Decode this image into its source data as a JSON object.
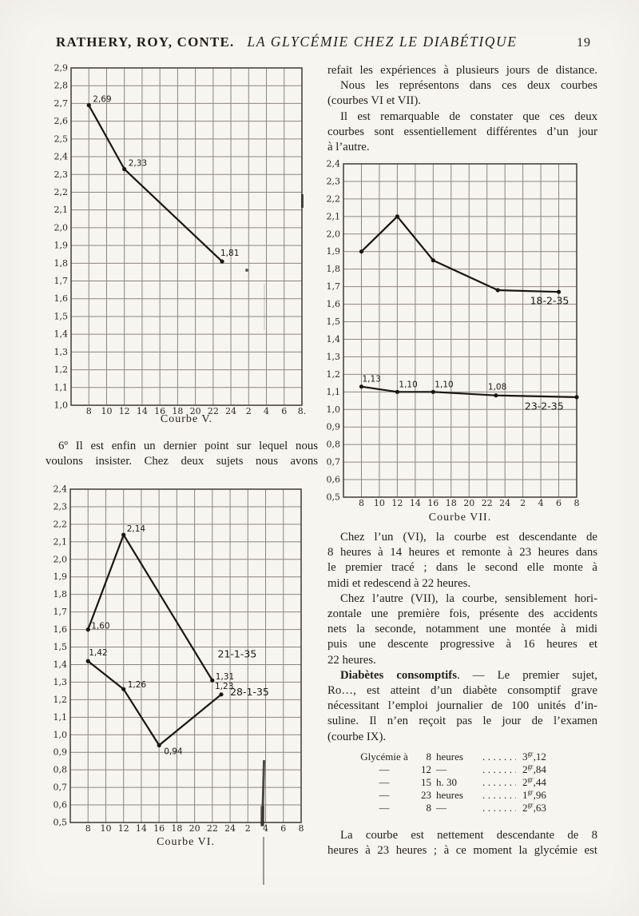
{
  "page": {
    "background": "#f7f5f0",
    "ink": "#211e19",
    "grid_line": "#8a867e",
    "curve_color": "#191611"
  },
  "header": {
    "authors": "RATHERY, ROY, CONTE.",
    "title": "LA GLYCÉMIE CHEZ LE DIABÉTIQUE",
    "page_number": "19"
  },
  "left_column": {
    "paragraphs": [
      {
        "indent": true,
        "lines": [
          {
            "t": "6º Il est enfin un dernier point sur lequel nous",
            "fill": true
          },
          {
            "t": "voulons insister. Chez deux sujets nous avons",
            "fill": true
          }
        ]
      }
    ]
  },
  "right_column": {
    "intro": [
      {
        "indent": false,
        "lines": [
          {
            "t": "refait les expériences à plusieurs jours de distance.",
            "fill": true
          }
        ]
      },
      {
        "indent": true,
        "lines": [
          {
            "t": "Nous les représentons dans ces deux courbes",
            "fill": true
          },
          {
            "t": "(courbes VI et VII).",
            "fill": false
          }
        ]
      },
      {
        "indent": true,
        "lines": [
          {
            "t": "Il est remarquable de constater que ces deux",
            "fill": true
          },
          {
            "t": "courbes sont essentiellement différentes d’un jour",
            "fill": true
          },
          {
            "t": "à l’autre.",
            "fill": false
          }
        ]
      }
    ],
    "discussion": [
      {
        "indent": true,
        "lines": [
          {
            "t": "Chez l’un (VI), la courbe est descendante de",
            "fill": true
          },
          {
            "t": "8 heures à 14 heures et remonte à 23 heures dans",
            "fill": true
          },
          {
            "t": "le premier tracé ; dans le second elle monte à",
            "fill": true
          },
          {
            "t": "midi et redescend à 22 heures.",
            "fill": false
          }
        ]
      },
      {
        "indent": true,
        "lines": [
          {
            "t": "Chez l’autre (VII), la courbe, sensiblement hori-",
            "fill": true
          },
          {
            "t": "zontale une première fois, présente des accidents",
            "fill": true
          },
          {
            "t": "nets la seconde, notamment une montée à midi",
            "fill": true
          },
          {
            "t": "puis une descente progressive à 16 heures et",
            "fill": true
          },
          {
            "t": "22 heures.",
            "fill": false
          }
        ]
      },
      {
        "indent": true,
        "lines": [
          {
            "b": "Diabètes consomptifs",
            "t": ". — Le premier sujet,",
            "fill": true
          },
          {
            "t": "Ro…, est atteint d’un diabète consomptif grave",
            "fill": true
          },
          {
            "t": "nécessitant l’emploi journalier de 100 unités d’in-",
            "fill": true
          },
          {
            "t": "suline. Il n’en reçoit pas le jour de l’examen",
            "fill": true
          },
          {
            "t": "(courbe IX).",
            "fill": false
          }
        ]
      }
    ],
    "closing": [
      {
        "indent": true,
        "lines": [
          {
            "t": "La courbe est nettement descendante de 8",
            "fill": true
          },
          {
            "t": "heures à 23 heures ; à ce moment la glycémie est",
            "fill": true
          }
        ]
      }
    ]
  },
  "glycemie_table": {
    "rows": [
      {
        "c1": "Glycémie à",
        "num": "8",
        "rest": "heures",
        "dots": "............",
        "v_int": "3",
        "v_unit": "gr",
        "v_dec": ",12"
      },
      {
        "c1": "—",
        "num": "12",
        "rest": "—",
        "dots": "............",
        "v_int": "2",
        "v_unit": "gr",
        "v_dec": ",84"
      },
      {
        "c1": "—",
        "num": "15",
        "rest": "h. 30",
        "dots": "............",
        "v_int": "2",
        "v_unit": "gr",
        "v_dec": ",44"
      },
      {
        "c1": "—",
        "num": "23",
        "rest": "heures",
        "dots": "............",
        "v_int": "1",
        "v_unit": "gr",
        "v_dec": ",96"
      },
      {
        "c1": "—",
        "num": "8",
        "rest": "—",
        "dots": "............",
        "v_int": "2",
        "v_unit": "gr",
        "v_dec": ",63"
      }
    ]
  },
  "chart_data": [
    {
      "id": "courbe-v",
      "type": "line",
      "title": "Courbe V.",
      "xlabel": "",
      "ylabel": "",
      "x_tick_labels": [
        "8",
        "10",
        "12",
        "14",
        "16",
        "18",
        "20",
        "22",
        "24",
        "2",
        "4",
        "6",
        "8."
      ],
      "ylim": [
        1.0,
        2.9
      ],
      "ystep": 0.1,
      "grid": true,
      "series": [
        {
          "name": "",
          "points": [
            {
              "xi": 0,
              "x_hour": "8",
              "y": 2.69,
              "label": "2,69",
              "ldx": 5,
              "ldy": -4
            },
            {
              "xi": 2,
              "x_hour": "12",
              "y": 2.33,
              "label": "2,33",
              "ldx": 5,
              "ldy": -4
            },
            {
              "xi": 7.5,
              "x_hour": "23",
              "y": 1.81,
              "label": "1,81",
              "ldx": -2,
              "ldy": -7
            }
          ]
        }
      ],
      "annotations": []
    },
    {
      "id": "courbe-vi",
      "type": "line",
      "title": "Courbe VI.",
      "xlabel": "",
      "ylabel": "",
      "x_tick_labels": [
        "8",
        "10",
        "12",
        "14",
        "16",
        "18",
        "20",
        "22",
        "24",
        "2",
        "4",
        "6",
        "8"
      ],
      "ylim": [
        0.5,
        2.4
      ],
      "ystep": 0.1,
      "grid": true,
      "series": [
        {
          "name": "21-1-35",
          "points": [
            {
              "xi": 0,
              "x_hour": "8",
              "y": 1.6,
              "label": "1,60",
              "ldx": 4,
              "ldy": -1
            },
            {
              "xi": 2,
              "x_hour": "12",
              "y": 2.14,
              "label": "2,14",
              "ldx": 4,
              "ldy": -4
            },
            {
              "xi": 7,
              "x_hour": "22",
              "y": 1.31,
              "label": "1,31",
              "ldx": 4,
              "ldy": -1
            }
          ]
        },
        {
          "name": "28-1-35",
          "points": [
            {
              "xi": 0,
              "x_hour": "8",
              "y": 1.42,
              "label": "1,42",
              "ldx": 1,
              "ldy": -7
            },
            {
              "xi": 2,
              "x_hour": "12",
              "y": 1.26,
              "label": "1,26",
              "ldx": 5,
              "ldy": -2
            },
            {
              "xi": 4,
              "x_hour": "16",
              "y": 0.94,
              "label": "0,94",
              "ldx": 6,
              "ldy": 11
            },
            {
              "xi": 7.5,
              "x_hour": "23",
              "y": 1.23,
              "label": "1,23",
              "ldx": -8,
              "ldy": -7
            }
          ]
        }
      ],
      "annotations": [
        {
          "text": "21-1-35",
          "xi": 7.3,
          "y": 1.44
        },
        {
          "text": "28-1-35",
          "xi": 8.0,
          "y": 1.225
        }
      ]
    },
    {
      "id": "courbe-vii",
      "type": "line",
      "title": "Courbe VII.",
      "xlabel": "",
      "ylabel": "",
      "x_tick_labels": [
        "8",
        "10",
        "12",
        "14",
        "16",
        "18",
        "20",
        "22",
        "24",
        "2",
        "4",
        "6",
        "8"
      ],
      "ylim": [
        0.5,
        2.4
      ],
      "ystep": 0.1,
      "grid": true,
      "series": [
        {
          "name": "18-2-35",
          "points": [
            {
              "xi": 0,
              "x_hour": "8",
              "y": 1.9
            },
            {
              "xi": 2,
              "x_hour": "12",
              "y": 2.1
            },
            {
              "xi": 4,
              "x_hour": "16",
              "y": 1.85
            },
            {
              "xi": 7.6,
              "x_hour": "23",
              "y": 1.68
            },
            {
              "xi": 11,
              "x_hour": "6",
              "y": 1.67
            }
          ]
        },
        {
          "name": "23-2-35",
          "points": [
            {
              "xi": 0,
              "x_hour": "8",
              "y": 1.13,
              "label": "1,13",
              "ldx": 1,
              "ldy": -6
            },
            {
              "xi": 2,
              "x_hour": "12",
              "y": 1.1,
              "label": "1,10",
              "ldx": 2,
              "ldy": -6
            },
            {
              "xi": 4,
              "x_hour": "16",
              "y": 1.1,
              "label": "1,10",
              "ldx": 2,
              "ldy": -6
            },
            {
              "xi": 7.5,
              "x_hour": "23",
              "y": 1.08,
              "label": "1,08",
              "ldx": -10,
              "ldy": -7
            },
            {
              "xi": 12,
              "x_hour": "8",
              "y": 1.07
            }
          ]
        }
      ],
      "annotations": [
        {
          "text": "18-2-35",
          "xi": 9.4,
          "y": 1.6
        },
        {
          "text": "23-2-35",
          "xi": 9.1,
          "y": 1.0
        }
      ]
    }
  ]
}
